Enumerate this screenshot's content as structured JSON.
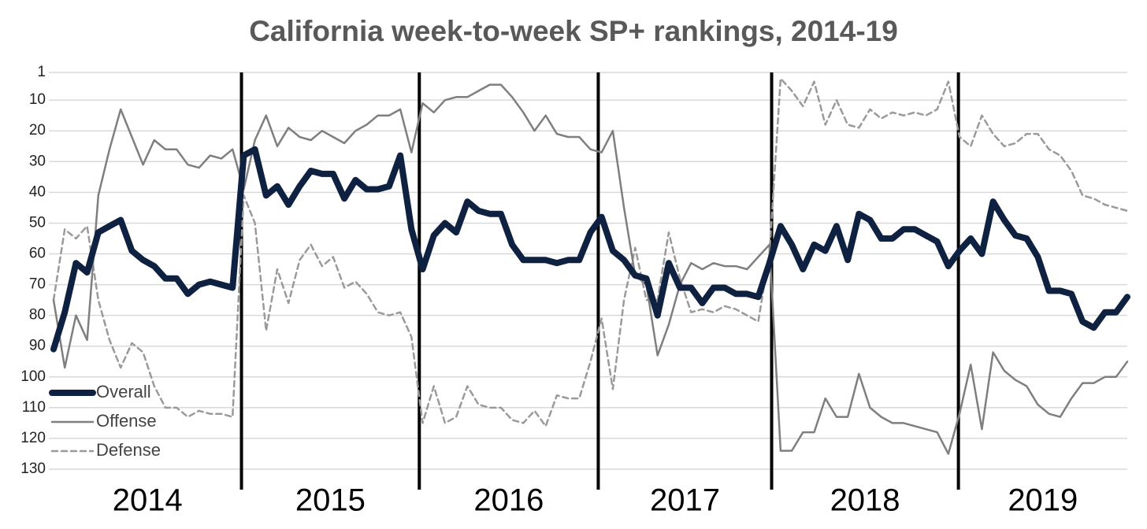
{
  "chart_data": {
    "type": "line",
    "title": "California week-to-week SP+ rankings, 2014-19",
    "x": [
      0,
      1,
      2,
      3,
      4,
      5,
      6,
      7,
      8,
      9,
      10,
      11,
      12,
      13,
      14,
      15,
      16,
      17,
      18,
      19,
      20,
      21,
      22,
      23,
      24,
      25,
      26,
      27,
      28,
      29,
      30,
      31,
      32,
      33,
      34,
      35,
      36,
      37,
      38,
      39,
      40,
      41,
      42,
      43,
      44,
      45,
      46,
      47,
      48,
      49,
      50,
      51,
      52,
      53,
      54,
      55,
      56,
      57,
      58,
      59,
      60,
      61,
      62,
      63,
      64,
      65,
      66,
      67,
      68,
      69,
      70,
      71,
      72,
      73,
      74,
      75,
      76,
      77,
      78,
      79,
      80,
      81,
      82,
      83,
      84,
      85,
      86,
      87,
      88,
      89,
      90,
      91,
      92,
      93,
      94,
      95,
      96
    ],
    "xlim": [
      0,
      96
    ],
    "ylim": [
      1,
      130
    ],
    "y_inverted": true,
    "yticks": [
      1,
      10,
      20,
      30,
      40,
      50,
      60,
      70,
      80,
      90,
      100,
      110,
      120,
      130
    ],
    "grid": true,
    "legend": "lower left",
    "separators": [
      16.8,
      32.7,
      48.7,
      64.2,
      80.9
    ],
    "year_labels": [
      "2014",
      "2015",
      "2016",
      "2017",
      "2018",
      "2019"
    ],
    "series": [
      {
        "name": "Overall",
        "color": "#0f2140",
        "style": "solid",
        "width": 8,
        "values": [
          91,
          79,
          63,
          66,
          53,
          51,
          49,
          59,
          62,
          64,
          68,
          68,
          73,
          70,
          69,
          70,
          71,
          28,
          26,
          41,
          38,
          44,
          38,
          33,
          34,
          34,
          42,
          36,
          39,
          39,
          38,
          28,
          52,
          65,
          54,
          50,
          53,
          43,
          46,
          47,
          47,
          57,
          62,
          62,
          62,
          63,
          62,
          62,
          53,
          48,
          59,
          62,
          67,
          68,
          80,
          63,
          71,
          71,
          76,
          71,
          71,
          73,
          73,
          74,
          63,
          51,
          57,
          65,
          57,
          59,
          51,
          62,
          47,
          49,
          55,
          55,
          52,
          52,
          54,
          56,
          64,
          59,
          55,
          60,
          43,
          49,
          54,
          55,
          61,
          72,
          72,
          73,
          82,
          84,
          79,
          79,
          74
        ]
      },
      {
        "name": "Offense",
        "color": "#7f7f7f",
        "style": "solid",
        "width": 2.5,
        "values": [
          75,
          97,
          80,
          88,
          41,
          26,
          13,
          22,
          31,
          23,
          26,
          26,
          31,
          32,
          28,
          29,
          26,
          39,
          23,
          15,
          25,
          19,
          22,
          23,
          20,
          22,
          24,
          20,
          18,
          15,
          15,
          13,
          27,
          11,
          14,
          10,
          9,
          9,
          7,
          5,
          5,
          9,
          14,
          20,
          15,
          21,
          22,
          22,
          26,
          27,
          20,
          45,
          67,
          70,
          93,
          83,
          70,
          63,
          65,
          63,
          64,
          64,
          65,
          61,
          57,
          124,
          124,
          118,
          118,
          107,
          113,
          113,
          99,
          110,
          113,
          115,
          115,
          116,
          117,
          118,
          125,
          112,
          96,
          117,
          92,
          98,
          101,
          103,
          109,
          112,
          113,
          107,
          102,
          102,
          100,
          100,
          95
        ]
      },
      {
        "name": "Defense",
        "color": "#9a9a9a",
        "style": "dashed",
        "width": 2.5,
        "values": [
          75,
          52,
          55,
          51,
          75,
          88,
          97,
          89,
          92,
          103,
          110,
          110,
          113,
          111,
          112,
          112,
          113,
          41,
          50,
          85,
          65,
          76,
          62,
          57,
          64,
          61,
          71,
          69,
          73,
          79,
          80,
          79,
          87,
          115,
          103,
          115,
          113,
          103,
          109,
          110,
          110,
          114,
          115,
          111,
          116,
          106,
          107,
          107,
          95,
          81,
          104,
          75,
          58,
          75,
          75,
          53,
          68,
          79,
          78,
          79,
          77,
          78,
          80,
          82,
          60,
          3,
          7,
          12,
          4,
          18,
          10,
          18,
          19,
          13,
          16,
          14,
          15,
          14,
          15,
          13,
          4,
          22,
          25,
          15,
          21,
          25,
          24,
          21,
          21,
          26,
          28,
          33,
          41,
          42,
          44,
          45,
          46
        ]
      }
    ]
  }
}
